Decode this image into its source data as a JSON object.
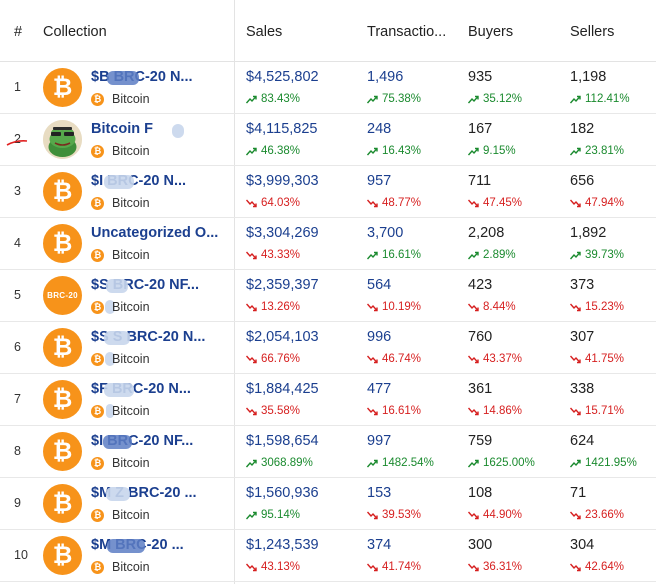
{
  "header": {
    "rank": "#",
    "collection": "Collection",
    "sales": "Sales",
    "transactions": "Transactio...",
    "buyers": "Buyers",
    "sellers": "Sellers"
  },
  "colors": {
    "accent_blue": "#1b3f8f",
    "up_green": "#1a8a2e",
    "down_red": "#d61f1f",
    "bitcoin_orange": "#f7931a"
  },
  "rows": [
    {
      "rank": "1",
      "name": "$B   BRC-20 N...",
      "chain": "Bitcoin",
      "avatar": "bitcoin-icon",
      "sales": "$4,525,802",
      "sales_chg": "83.43%",
      "sales_dir": "up",
      "tx": "1,496",
      "tx_chg": "75.38%",
      "tx_dir": "up",
      "buyers": "935",
      "buyers_chg": "35.12%",
      "buyers_dir": "up",
      "sellers": "1,198",
      "sellers_chg": "112.41%",
      "sellers_dir": "up"
    },
    {
      "rank": "2",
      "name": "Bitcoin F",
      "chain": "Bitcoin",
      "avatar": "frog-avatar",
      "sales": "$4,115,825",
      "sales_chg": "46.38%",
      "sales_dir": "up",
      "tx": "248",
      "tx_chg": "16.43%",
      "tx_dir": "up",
      "buyers": "167",
      "buyers_chg": "9.15%",
      "buyers_dir": "up",
      "sellers": "182",
      "sellers_chg": "23.81%",
      "sellers_dir": "up"
    },
    {
      "rank": "3",
      "name": "$I    BRC-20 N...",
      "chain": "Bitcoin",
      "avatar": "bitcoin-icon",
      "sales": "$3,999,303",
      "sales_chg": "64.03%",
      "sales_dir": "down",
      "tx": "957",
      "tx_chg": "48.77%",
      "tx_dir": "down",
      "buyers": "711",
      "buyers_chg": "47.45%",
      "buyers_dir": "down",
      "sellers": "656",
      "sellers_chg": "47.94%",
      "sellers_dir": "down"
    },
    {
      "rank": "4",
      "name": "Uncategorized O...",
      "chain": "Bitcoin",
      "avatar": "bitcoin-icon",
      "sales": "$3,304,269",
      "sales_chg": "43.33%",
      "sales_dir": "down",
      "tx": "3,700",
      "tx_chg": "16.61%",
      "tx_dir": "up",
      "buyers": "2,208",
      "buyers_chg": "2.89%",
      "buyers_dir": "up",
      "sellers": "1,892",
      "sellers_chg": "39.73%",
      "sellers_dir": "up"
    },
    {
      "rank": "5",
      "name": "$S    BRC-20 NF...",
      "chain": "Bitcoin",
      "avatar": "brc20-icon",
      "avatar_text": "BRC-20",
      "sales": "$2,359,397",
      "sales_chg": "13.26%",
      "sales_dir": "down",
      "tx": "564",
      "tx_chg": "10.19%",
      "tx_dir": "down",
      "buyers": "423",
      "buyers_chg": "8.44%",
      "buyers_dir": "down",
      "sellers": "373",
      "sellers_chg": "15.23%",
      "sellers_dir": "down"
    },
    {
      "rank": "6",
      "name": "$S   S BRC-20 N...",
      "chain": "Bitcoin",
      "avatar": "bitcoin-icon",
      "sales": "$2,054,103",
      "sales_chg": "66.76%",
      "sales_dir": "down",
      "tx": "996",
      "tx_chg": "46.74%",
      "tx_dir": "down",
      "buyers": "760",
      "buyers_chg": "43.37%",
      "buyers_dir": "down",
      "sellers": "307",
      "sellers_chg": "41.75%",
      "sellers_dir": "down"
    },
    {
      "rank": "7",
      "name": "$F    BRC-20 N...",
      "chain": "Bitcoin",
      "avatar": "bitcoin-icon",
      "sales": "$1,884,425",
      "sales_chg": "35.58%",
      "sales_dir": "down",
      "tx": "477",
      "tx_chg": "16.61%",
      "tx_dir": "down",
      "buyers": "361",
      "buyers_chg": "14.86%",
      "buyers_dir": "down",
      "sellers": "338",
      "sellers_chg": "15.71%",
      "sellers_dir": "down"
    },
    {
      "rank": "8",
      "name": "$I    BRC-20 NF...",
      "chain": "Bitcoin",
      "avatar": "bitcoin-icon",
      "sales": "$1,598,654",
      "sales_chg": "3068.89%",
      "sales_dir": "up",
      "tx": "997",
      "tx_chg": "1482.54%",
      "tx_dir": "up",
      "buyers": "759",
      "buyers_chg": "1625.00%",
      "buyers_dir": "up",
      "sellers": "624",
      "sellers_chg": "1421.95%",
      "sellers_dir": "up"
    },
    {
      "rank": "9",
      "name": "$M   Z BRC-20 ...",
      "chain": "Bitcoin",
      "avatar": "bitcoin-icon",
      "sales": "$1,560,936",
      "sales_chg": "95.14%",
      "sales_dir": "up",
      "tx": "153",
      "tx_chg": "39.53%",
      "tx_dir": "down",
      "buyers": "108",
      "buyers_chg": "44.90%",
      "buyers_dir": "down",
      "sellers": "71",
      "sellers_chg": "23.66%",
      "sellers_dir": "down"
    },
    {
      "rank": "10",
      "name": "$M    BRC-20 ...",
      "chain": "Bitcoin",
      "avatar": "bitcoin-icon",
      "sales": "$1,243,539",
      "sales_chg": "43.13%",
      "sales_dir": "down",
      "tx": "374",
      "tx_chg": "41.74%",
      "tx_dir": "down",
      "buyers": "300",
      "buyers_chg": "36.31%",
      "buyers_dir": "down",
      "sellers": "304",
      "sellers_chg": "42.64%",
      "sellers_dir": "down"
    }
  ]
}
